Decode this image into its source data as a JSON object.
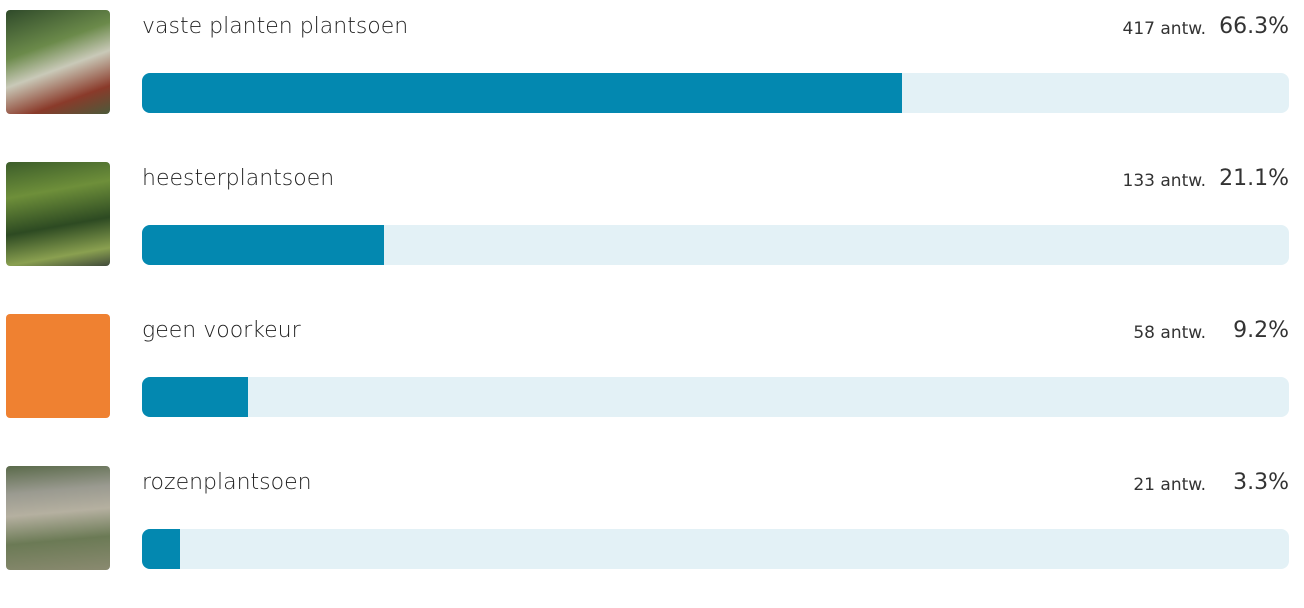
{
  "chart_data": {
    "type": "bar",
    "categories": [
      "vaste planten plantsoen",
      "heesterplantsoen",
      "geen voorkeur",
      "rozenplantsoen"
    ],
    "values": [
      66.3,
      21.1,
      9.2,
      3.3
    ],
    "value_labels": [
      "66.3%",
      "21.1%",
      "9.2%",
      "3.3%"
    ],
    "count_labels": [
      "417 antw.",
      "133 antw.",
      "58 antw.",
      "21 antw."
    ],
    "xlim": [
      0,
      100
    ],
    "color": "#0388b0",
    "track_color": "#e3f1f6"
  }
}
